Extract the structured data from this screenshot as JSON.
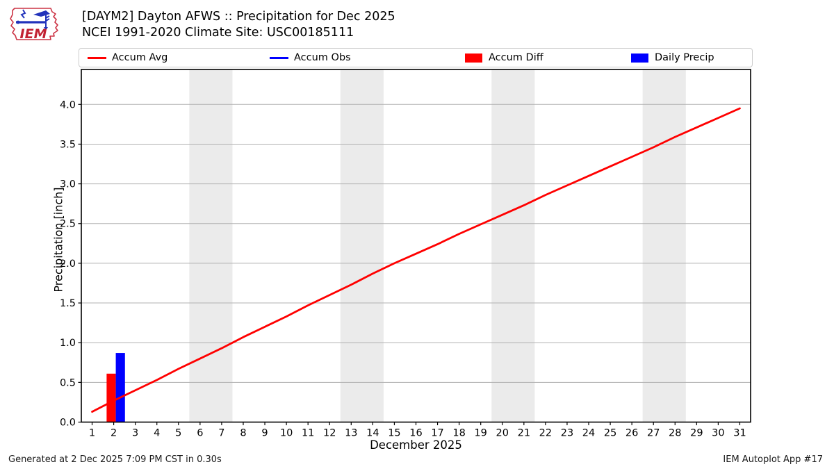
{
  "header": {
    "title": "[DAYM2] Dayton AFWS :: Precipitation for Dec 2025",
    "subtitle": "NCEI 1991-2020 Climate Site: USC00185111",
    "logo_text": "IEM"
  },
  "legend": {
    "items": [
      {
        "label": "Accum Avg",
        "swatch": "line",
        "color": "#ff0000"
      },
      {
        "label": "Accum Obs",
        "swatch": "line",
        "color": "#0000ff"
      },
      {
        "label": "Accum Diff",
        "swatch": "rect",
        "color": "#ff0000"
      },
      {
        "label": "Daily Precip",
        "swatch": "rect",
        "color": "#0000ff"
      }
    ]
  },
  "footer": {
    "generated": "Generated at 2 Dec 2025 7:09 PM CST in 0.30s",
    "app": "IEM Autoplot App #17"
  },
  "colors": {
    "accum_avg": "#ff0000",
    "accum_obs": "#0000ff",
    "accum_diff": "#ff0000",
    "daily_precip": "#0000ff",
    "weekend_band": "#ebebeb",
    "gridline": "#b0b0b0",
    "spine": "#000000"
  },
  "chart_data": {
    "type": "line+bar",
    "title": "[DAYM2] Dayton AFWS :: Precipitation for Dec 2025",
    "subtitle": "NCEI 1991-2020 Climate Site: USC00185111",
    "xlabel": "December 2025",
    "ylabel": "Precipitation [inch]",
    "xlim": [
      0.5,
      31.5
    ],
    "ylim": [
      0,
      4.44
    ],
    "grid": "horizontal",
    "legend_position": "top",
    "x_ticks": [
      1,
      2,
      3,
      4,
      5,
      6,
      7,
      8,
      9,
      10,
      11,
      12,
      13,
      14,
      15,
      16,
      17,
      18,
      19,
      20,
      21,
      22,
      23,
      24,
      25,
      26,
      27,
      28,
      29,
      30,
      31
    ],
    "y_ticks": [
      0.0,
      0.5,
      1.0,
      1.5,
      2.0,
      2.5,
      3.0,
      3.5,
      4.0
    ],
    "weekend_bands": [
      [
        5.5,
        7.5
      ],
      [
        12.5,
        14.5
      ],
      [
        19.5,
        21.5
      ],
      [
        26.5,
        28.5
      ]
    ],
    "series": [
      {
        "name": "Accum Avg",
        "type": "line",
        "color": "#ff0000",
        "x": [
          1,
          2,
          3,
          4,
          5,
          6,
          7,
          8,
          9,
          10,
          11,
          12,
          13,
          14,
          15,
          16,
          17,
          18,
          19,
          20,
          21,
          22,
          23,
          24,
          25,
          26,
          27,
          28,
          29,
          30,
          31
        ],
        "y": [
          0.13,
          0.27,
          0.4,
          0.53,
          0.67,
          0.8,
          0.93,
          1.07,
          1.2,
          1.33,
          1.47,
          1.6,
          1.73,
          1.87,
          2.0,
          2.12,
          2.24,
          2.37,
          2.49,
          2.61,
          2.73,
          2.86,
          2.98,
          3.1,
          3.22,
          3.34,
          3.46,
          3.59,
          3.71,
          3.83,
          3.95
        ]
      },
      {
        "name": "Accum Diff",
        "type": "bar",
        "color": "#ff0000",
        "x": [
          2
        ],
        "y": [
          0.61
        ]
      },
      {
        "name": "Daily Precip",
        "type": "bar",
        "color": "#0000ff",
        "x": [
          2
        ],
        "y": [
          0.87
        ]
      }
    ]
  }
}
